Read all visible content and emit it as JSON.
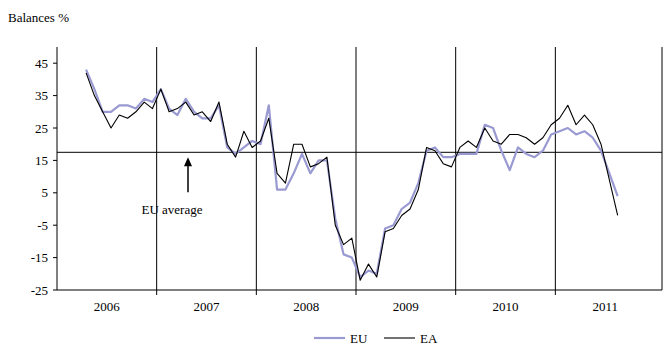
{
  "chart_data": {
    "type": "line",
    "y_label": "Balances %",
    "x": [
      2006.292,
      2006.375,
      2006.458,
      2006.542,
      2006.625,
      2006.708,
      2006.792,
      2006.875,
      2006.958,
      2007.042,
      2007.125,
      2007.208,
      2007.292,
      2007.375,
      2007.458,
      2007.542,
      2007.625,
      2007.708,
      2007.792,
      2007.875,
      2007.958,
      2008.042,
      2008.125,
      2008.208,
      2008.292,
      2008.375,
      2008.458,
      2008.542,
      2008.625,
      2008.708,
      2008.792,
      2008.875,
      2008.958,
      2009.042,
      2009.125,
      2009.208,
      2009.292,
      2009.375,
      2009.458,
      2009.542,
      2009.625,
      2009.708,
      2009.792,
      2009.875,
      2009.958,
      2010.042,
      2010.125,
      2010.208,
      2010.292,
      2010.375,
      2010.458,
      2010.542,
      2010.625,
      2010.708,
      2010.792,
      2010.875,
      2010.958,
      2011.042,
      2011.125,
      2011.208,
      2011.292,
      2011.375,
      2011.458,
      2011.542,
      2011.625
    ],
    "series": [
      {
        "name": "EU",
        "color": "#9a9ad2",
        "line_style": "solid",
        "values": [
          43,
          37,
          30,
          30,
          32,
          32,
          31,
          34,
          33,
          37,
          31,
          29,
          34,
          30,
          28,
          28,
          32,
          19,
          17,
          19,
          21,
          20,
          32,
          6,
          6,
          11,
          17,
          11,
          15,
          15,
          -3,
          -14,
          -15,
          -21,
          -19,
          -20,
          -6,
          -5,
          0,
          2,
          8,
          18,
          19,
          16,
          16,
          17,
          17,
          17,
          26,
          25,
          18,
          12,
          19,
          17,
          16,
          18,
          23,
          24,
          25,
          23,
          24,
          22,
          18,
          11,
          4
        ]
      },
      {
        "name": "EA",
        "color": "#000000",
        "line_style": "solid",
        "values": [
          42,
          35,
          30,
          25,
          29,
          28,
          30,
          33,
          31,
          37,
          30,
          31,
          33,
          29,
          30,
          27,
          33,
          20,
          16,
          24,
          19,
          21,
          28,
          11,
          8,
          20,
          20,
          13,
          14,
          16,
          -5,
          -11,
          -9,
          -22,
          -17,
          -21,
          -7,
          -6,
          -2,
          0,
          6,
          19,
          18,
          14,
          13,
          19,
          21,
          19,
          25,
          21,
          20,
          23,
          23,
          22,
          20,
          22,
          26,
          28,
          32,
          26,
          29,
          26,
          20,
          9,
          -2
        ]
      }
    ],
    "xlim": [
      2006,
      2012.07
    ],
    "xticks": [
      {
        "value": 2006.5,
        "label": "2006"
      },
      {
        "value": 2007.5,
        "label": "2007"
      },
      {
        "value": 2008.5,
        "label": "2008"
      },
      {
        "value": 2009.5,
        "label": "2009"
      },
      {
        "value": 2010.5,
        "label": "2010"
      },
      {
        "value": 2011.5,
        "label": "2011"
      }
    ],
    "ylim": [
      -25,
      50
    ],
    "yticks": [
      45,
      35,
      25,
      15,
      5,
      -5,
      -15,
      -25
    ],
    "grid": true,
    "legend": "bottom",
    "annotations": [
      {
        "text": "EU average",
        "value": 17.5
      }
    ]
  }
}
